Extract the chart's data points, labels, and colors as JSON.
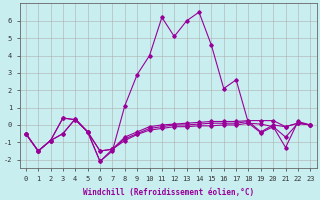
{
  "xlabel": "Windchill (Refroidissement éolien,°C)",
  "background_color": "#c8eef0",
  "grid_color": "#b0b0b0",
  "line_color": "#990099",
  "xlim": [
    -0.5,
    23.5
  ],
  "ylim": [
    -2.5,
    7.0
  ],
  "xticks": [
    0,
    1,
    2,
    3,
    4,
    5,
    6,
    7,
    8,
    9,
    10,
    11,
    12,
    13,
    14,
    15,
    16,
    17,
    18,
    19,
    20,
    21,
    22,
    23
  ],
  "yticks": [
    -2,
    -1,
    0,
    1,
    2,
    3,
    4,
    5,
    6
  ],
  "series": [
    [
      -0.5,
      -1.5,
      -0.9,
      0.4,
      0.3,
      -0.4,
      -2.1,
      -1.5,
      1.1,
      2.9,
      4.0,
      6.2,
      5.1,
      6.0,
      6.5,
      4.6,
      2.1,
      2.6,
      0.1,
      0.05,
      -0.1,
      -1.3,
      0.2,
      0.0
    ],
    [
      -0.5,
      -1.5,
      -0.9,
      0.4,
      0.3,
      -0.4,
      -2.1,
      -1.4,
      -0.7,
      -0.4,
      -0.1,
      0.0,
      0.05,
      0.1,
      0.15,
      0.2,
      0.2,
      0.2,
      0.25,
      0.25,
      0.25,
      -0.1,
      0.1,
      0.0
    ],
    [
      -0.5,
      -1.5,
      -0.9,
      -0.5,
      0.35,
      -0.4,
      -1.5,
      -1.4,
      -0.8,
      -0.5,
      -0.2,
      -0.1,
      0.0,
      0.0,
      0.05,
      0.1,
      0.1,
      0.1,
      0.2,
      -0.4,
      0.0,
      -0.1,
      0.1,
      0.0
    ],
    [
      -0.5,
      -1.5,
      -0.9,
      -0.5,
      0.35,
      -0.4,
      -1.5,
      -1.4,
      -0.9,
      -0.55,
      -0.3,
      -0.2,
      -0.1,
      -0.1,
      -0.05,
      -0.05,
      0.0,
      0.0,
      0.1,
      -0.45,
      -0.1,
      -0.7,
      0.1,
      0.0
    ]
  ],
  "figsize": [
    3.2,
    2.0
  ],
  "dpi": 100
}
